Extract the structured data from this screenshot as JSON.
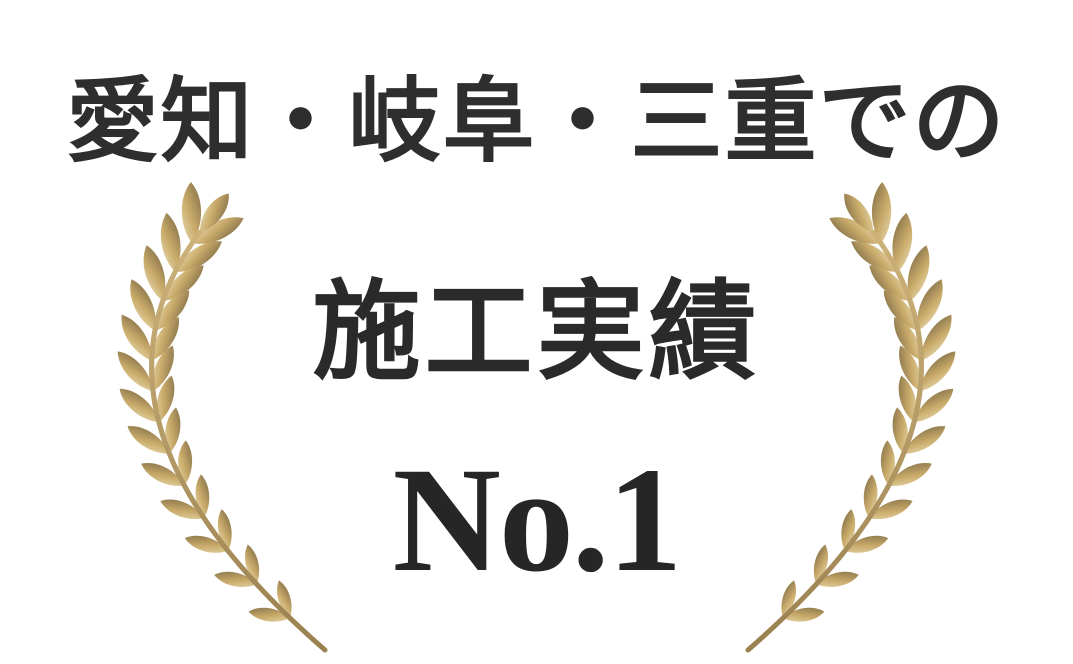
{
  "headline": "愛知・岐阜・三重での",
  "achievement": "施工実績",
  "rank": "No.1",
  "colors": {
    "text": "#2e2e2e",
    "gold_light": "#e2cf9a",
    "gold_mid": "#b99757",
    "gold_dark": "#7d6a45",
    "background": "#ffffff"
  },
  "icons": [
    "laurel-branch-left-icon",
    "laurel-branch-right-icon"
  ]
}
